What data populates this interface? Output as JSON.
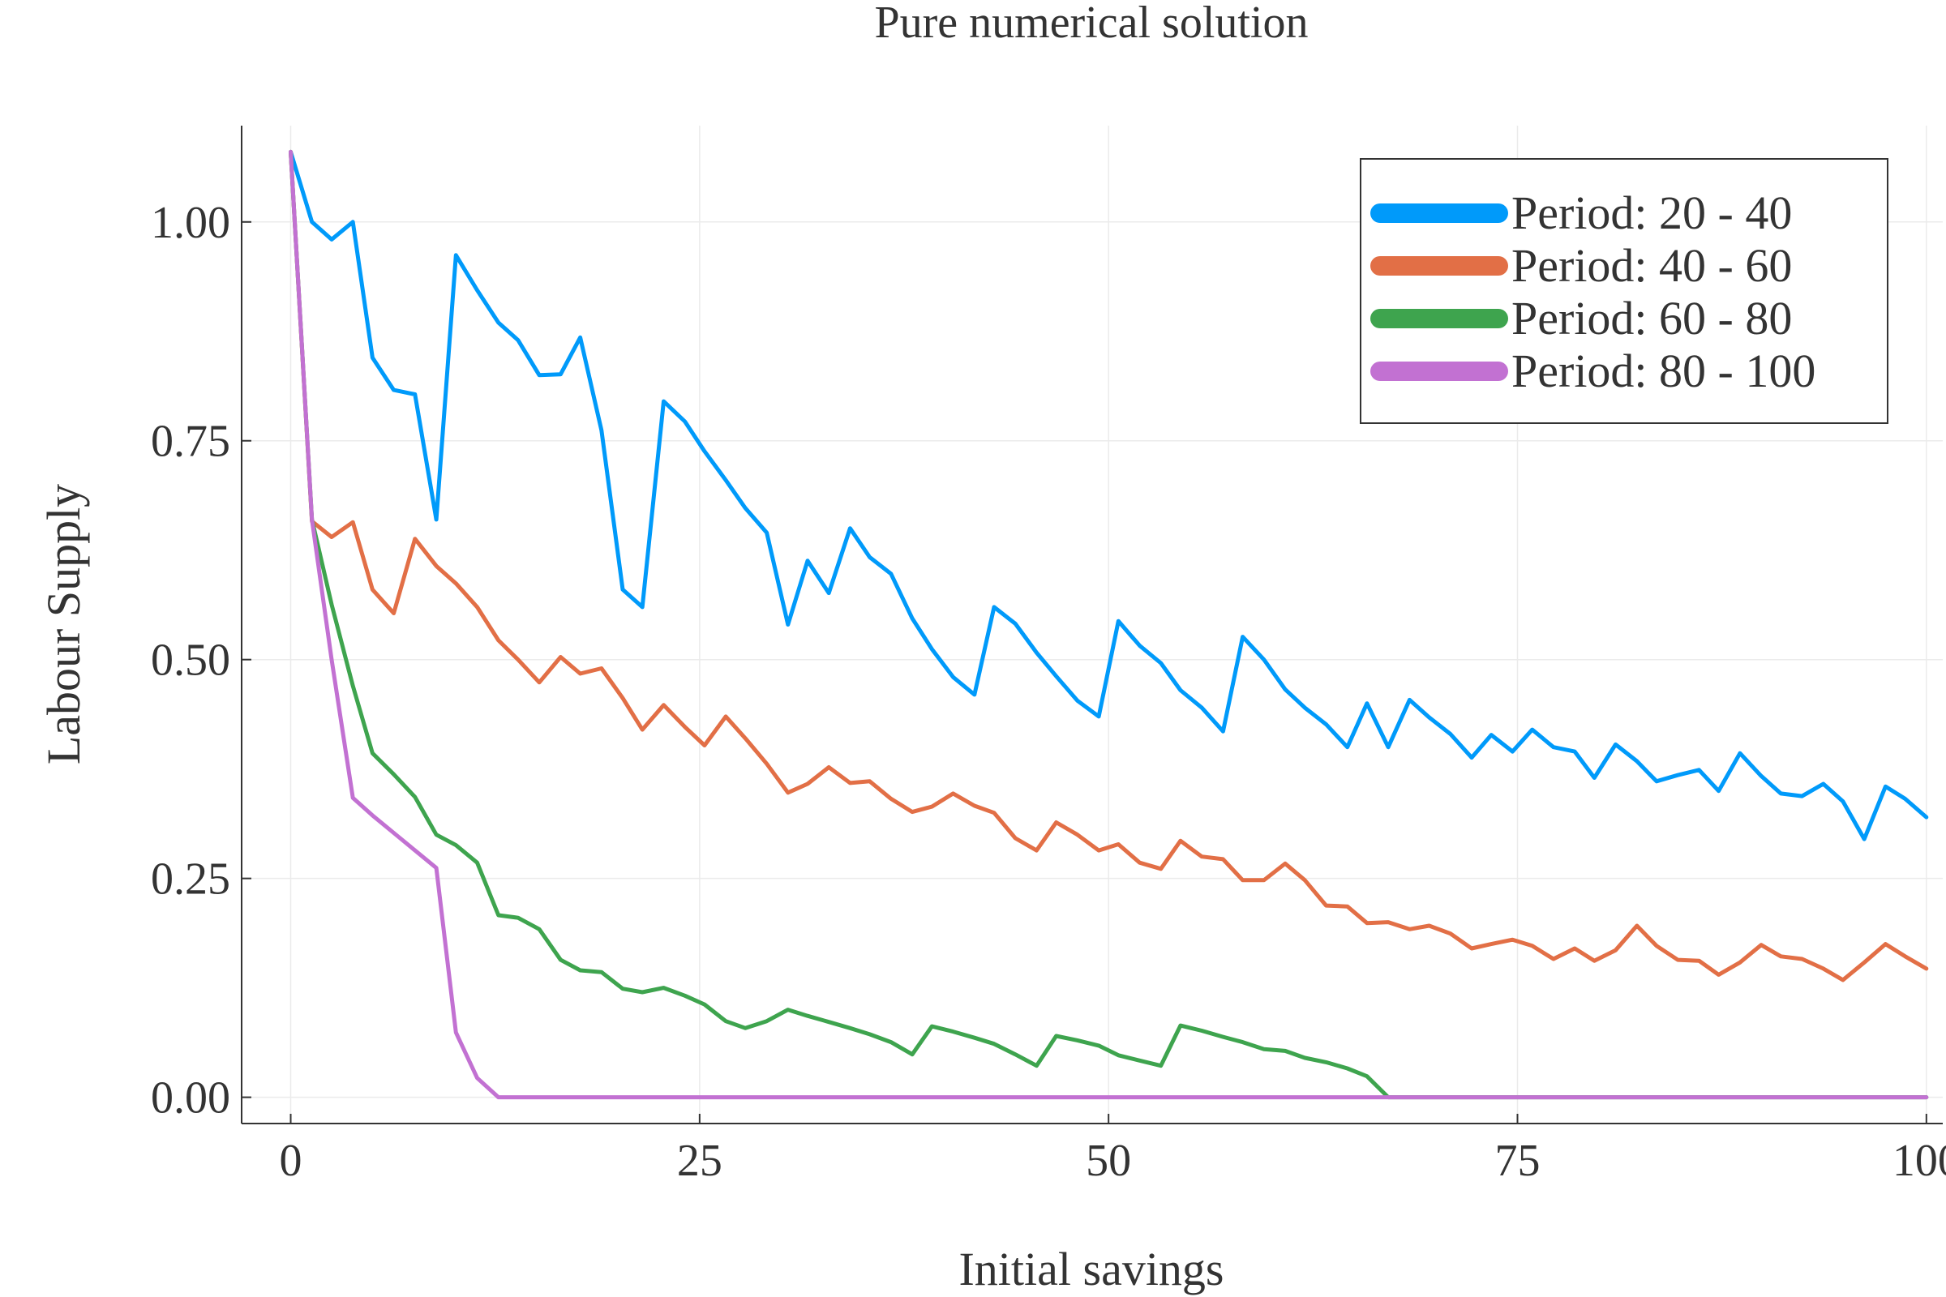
{
  "chart_data": {
    "type": "line",
    "title": "Pure numerical solution",
    "xlabel": "Initial savings",
    "ylabel": "Labour Supply",
    "xlim": [
      -3,
      101
    ],
    "ylim": [
      -0.03,
      1.11
    ],
    "xticks": [
      0,
      25,
      50,
      75,
      100
    ],
    "xtick_labels": [
      "0",
      "25",
      "50",
      "75",
      "100"
    ],
    "yticks": [
      0.0,
      0.25,
      0.5,
      0.75,
      1.0
    ],
    "ytick_labels": [
      "0.00",
      "0.25",
      "0.50",
      "0.75",
      "1.00"
    ],
    "grid": true,
    "legend_position": "top-right",
    "series": [
      {
        "name": "Period: 20 - 40",
        "color": "#009AFA",
        "x": [
          0,
          1.3,
          2.5,
          3.8,
          5,
          6.3,
          7.6,
          8.9,
          10.1,
          11.4,
          12.7,
          13.9,
          15.2,
          16.5,
          17.7,
          19,
          20.3,
          21.5,
          22.8,
          24.1,
          25.3,
          26.6,
          27.8,
          29.1,
          30.4,
          31.6,
          32.9,
          34.2,
          35.4,
          36.7,
          38,
          39.2,
          40.5,
          41.8,
          43,
          44.3,
          45.6,
          46.8,
          48.1,
          49.4,
          50.6,
          51.9,
          53.2,
          54.4,
          55.7,
          57,
          58.2,
          59.5,
          60.8,
          62,
          63.3,
          64.6,
          65.8,
          67.1,
          68.4,
          69.6,
          70.9,
          72.2,
          73.4,
          74.7,
          75.9,
          77.2,
          78.5,
          79.7,
          81,
          82.3,
          83.5,
          84.8,
          86.1,
          87.3,
          88.6,
          89.9,
          91.1,
          92.4,
          93.7,
          94.9,
          96.2,
          97.5,
          98.7,
          100
        ],
        "y": [
          1.08,
          1.0,
          0.98,
          1.0,
          0.845,
          0.808,
          0.803,
          0.66,
          0.962,
          0.922,
          0.885,
          0.865,
          0.825,
          0.826,
          0.868,
          0.762,
          0.58,
          0.56,
          0.795,
          0.772,
          0.738,
          0.705,
          0.673,
          0.645,
          0.54,
          0.613,
          0.576,
          0.65,
          0.617,
          0.598,
          0.547,
          0.512,
          0.48,
          0.46,
          0.56,
          0.541,
          0.508,
          0.481,
          0.453,
          0.435,
          0.544,
          0.516,
          0.496,
          0.465,
          0.445,
          0.418,
          0.526,
          0.5,
          0.466,
          0.445,
          0.426,
          0.4,
          0.45,
          0.4,
          0.454,
          0.434,
          0.415,
          0.388,
          0.414,
          0.395,
          0.42,
          0.4,
          0.395,
          0.365,
          0.403,
          0.384,
          0.361,
          0.368,
          0.374,
          0.35,
          0.393,
          0.367,
          0.347,
          0.344,
          0.358,
          0.338,
          0.295,
          0.355,
          0.341,
          0.32
        ]
      },
      {
        "name": "Period: 40 - 60",
        "color": "#E26F46",
        "x": [
          0,
          1.3,
          2.5,
          3.8,
          5,
          6.3,
          7.6,
          8.9,
          10.1,
          11.4,
          12.7,
          13.9,
          15.2,
          16.5,
          17.7,
          19,
          20.3,
          21.5,
          22.8,
          24.1,
          25.3,
          26.6,
          27.8,
          29.1,
          30.4,
          31.6,
          32.9,
          34.2,
          35.4,
          36.7,
          38,
          39.2,
          40.5,
          41.8,
          43,
          44.3,
          45.6,
          46.8,
          48.1,
          49.4,
          50.6,
          51.9,
          53.2,
          54.4,
          55.7,
          57,
          58.2,
          59.5,
          60.8,
          62,
          63.3,
          64.6,
          65.8,
          67.1,
          68.4,
          69.6,
          70.9,
          72.2,
          73.4,
          74.7,
          75.9,
          77.2,
          78.5,
          79.7,
          81,
          82.3,
          83.5,
          84.8,
          86.1,
          87.3,
          88.6,
          89.9,
          91.1,
          92.4,
          93.7,
          94.9,
          96.2,
          97.5,
          98.7,
          100
        ],
        "y": [
          1.08,
          0.658,
          0.64,
          0.657,
          0.58,
          0.553,
          0.638,
          0.607,
          0.587,
          0.56,
          0.522,
          0.5,
          0.474,
          0.503,
          0.484,
          0.49,
          0.456,
          0.42,
          0.448,
          0.423,
          0.402,
          0.435,
          0.41,
          0.381,
          0.348,
          0.358,
          0.377,
          0.359,
          0.361,
          0.341,
          0.326,
          0.332,
          0.347,
          0.333,
          0.325,
          0.296,
          0.282,
          0.314,
          0.3,
          0.282,
          0.289,
          0.268,
          0.261,
          0.293,
          0.275,
          0.272,
          0.248,
          0.248,
          0.267,
          0.248,
          0.219,
          0.218,
          0.199,
          0.2,
          0.192,
          0.196,
          0.187,
          0.17,
          0.175,
          0.18,
          0.173,
          0.158,
          0.17,
          0.156,
          0.168,
          0.196,
          0.173,
          0.157,
          0.156,
          0.14,
          0.154,
          0.174,
          0.161,
          0.158,
          0.147,
          0.134,
          0.154,
          0.175,
          0.161,
          0.147
        ]
      },
      {
        "name": "Period: 60 - 80",
        "color": "#3EA44E",
        "x": [
          0,
          1.3,
          2.5,
          3.8,
          5,
          6.3,
          7.6,
          8.9,
          10.1,
          11.4,
          12.7,
          13.9,
          15.2,
          16.5,
          17.7,
          19,
          20.3,
          21.5,
          22.8,
          24.1,
          25.3,
          26.6,
          27.8,
          29.1,
          30.4,
          31.6,
          32.9,
          34.2,
          35.4,
          36.7,
          38,
          39.2,
          40.5,
          41.8,
          43,
          44.3,
          45.6,
          46.8,
          48.1,
          49.4,
          50.6,
          51.9,
          53.2,
          54.4,
          55.7,
          57,
          58.2,
          59.5,
          60.8,
          62,
          63.3,
          64.6,
          65.8,
          67.1,
          68.4,
          69.6,
          70.9,
          72.2,
          73.4,
          74.7,
          75.9,
          77.2,
          78.5,
          79.7,
          81,
          82.3,
          83.5,
          84.8,
          86.1,
          87.3,
          88.6,
          89.9,
          91.1,
          92.4,
          93.7,
          94.9,
          96.2,
          97.5,
          98.7,
          100
        ],
        "y": [
          1.08,
          0.66,
          0.563,
          0.47,
          0.393,
          0.369,
          0.343,
          0.3,
          0.288,
          0.268,
          0.208,
          0.205,
          0.192,
          0.157,
          0.145,
          0.143,
          0.124,
          0.12,
          0.125,
          0.116,
          0.106,
          0.087,
          0.079,
          0.087,
          0.1,
          0.093,
          0.086,
          0.079,
          0.072,
          0.063,
          0.049,
          0.081,
          0.075,
          0.068,
          0.061,
          0.049,
          0.036,
          0.07,
          0.065,
          0.059,
          0.048,
          0.042,
          0.036,
          0.082,
          0.076,
          0.069,
          0.063,
          0.055,
          0.053,
          0.045,
          0.04,
          0.033,
          0.024,
          0.0,
          0.0,
          0.0,
          0.0,
          0.0,
          0.0,
          0.0,
          0.0,
          0.0,
          0.0,
          0.0,
          0.0,
          0.0,
          0.0,
          0.0,
          0.0,
          0.0,
          0.0,
          0.0,
          0.0,
          0.0,
          0.0,
          0.0,
          0.0,
          0.0,
          0.0,
          0.0
        ]
      },
      {
        "name": "Period: 80 - 100",
        "color": "#C271D2",
        "x": [
          0,
          1.3,
          2.5,
          3.8,
          5,
          6.3,
          7.6,
          8.9,
          10.1,
          11.4,
          12.7,
          13.9,
          100
        ],
        "y": [
          1.08,
          0.66,
          0.5,
          0.342,
          0.322,
          0.302,
          0.282,
          0.262,
          0.074,
          0.022,
          0.0,
          0.0,
          0.0
        ]
      }
    ]
  }
}
